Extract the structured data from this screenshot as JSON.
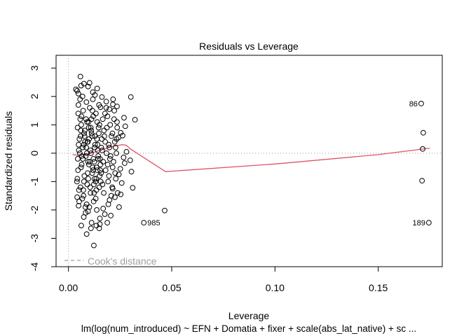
{
  "chart_data": {
    "type": "scatter",
    "title": "Residuals vs Leverage",
    "xlabel": "Leverage",
    "ylabel": "Standardized residuals",
    "subtitle": "lm(log(num_introduced) ~ EFN + Domatia + fixer + scale(abs_lat_native) + sc ...",
    "xlim": [
      -0.006,
      0.181
    ],
    "ylim": [
      -4.0,
      3.45
    ],
    "x_ticks": [
      0.0,
      0.05,
      0.1,
      0.15
    ],
    "x_tick_labels": [
      "0.00",
      "0.05",
      "0.10",
      "0.15"
    ],
    "y_ticks": [
      -4,
      -3,
      -2,
      -1,
      0,
      1,
      2,
      3
    ],
    "y_tick_labels": [
      "-4",
      "-3",
      "-2",
      "-1",
      "0",
      "1",
      "2",
      "3"
    ],
    "legend": {
      "position": "bottom-left",
      "label": "Cook's distance",
      "line_style": "dashed",
      "color": "#9e9e9e"
    },
    "reference_lines": {
      "h": 0,
      "v": 0,
      "style": "dotted",
      "color": "#9e9e9e"
    },
    "smooth_color": "#df536b",
    "smooth_line": {
      "x": [
        0.002,
        0.005,
        0.01,
        0.016,
        0.022,
        0.026,
        0.028,
        0.03,
        0.047,
        0.1,
        0.15,
        0.175
      ],
      "y": [
        -0.05,
        -0.08,
        -0.02,
        0.12,
        0.25,
        0.3,
        0.28,
        0.15,
        -0.65,
        -0.38,
        -0.05,
        0.18
      ]
    },
    "cluster_points": [
      [
        0.0042,
        2.2
      ],
      [
        0.0056,
        1.9
      ],
      [
        0.0071,
        1.5
      ],
      [
        0.0085,
        1.2
      ],
      [
        0.0098,
        0.9
      ],
      [
        0.0114,
        0.6
      ],
      [
        0.0129,
        0.3
      ],
      [
        0.0142,
        0.1
      ],
      [
        0.0045,
        -0.2
      ],
      [
        0.0061,
        -0.5
      ],
      [
        0.0077,
        -0.8
      ],
      [
        0.0091,
        -1.1
      ],
      [
        0.0107,
        -1.4
      ],
      [
        0.0122,
        -1.7
      ],
      [
        0.0137,
        -2.0
      ],
      [
        0.0152,
        -2.3
      ],
      [
        0.0048,
        1.7
      ],
      [
        0.0063,
        1.3
      ],
      [
        0.0079,
        0.8
      ],
      [
        0.0094,
        0.4
      ],
      [
        0.0109,
        0.0
      ],
      [
        0.0125,
        -0.3
      ],
      [
        0.014,
        -0.6
      ],
      [
        0.0156,
        -1.0
      ],
      [
        0.0051,
        -1.3
      ],
      [
        0.0067,
        -1.6
      ],
      [
        0.0082,
        -1.9
      ],
      [
        0.0097,
        1.1
      ],
      [
        0.0112,
        0.7
      ],
      [
        0.0127,
        0.2
      ],
      [
        0.0143,
        -0.2
      ],
      [
        0.0158,
        -0.7
      ],
      [
        0.0053,
        0.5
      ],
      [
        0.0069,
        0.2
      ],
      [
        0.0084,
        -0.1
      ],
      [
        0.0099,
        -0.4
      ],
      [
        0.0115,
        -0.7
      ],
      [
        0.0131,
        -1.0
      ],
      [
        0.0146,
        0.9
      ],
      [
        0.0161,
        0.5
      ],
      [
        0.0044,
        0.9
      ],
      [
        0.0059,
        0.6
      ],
      [
        0.0074,
        0.3
      ],
      [
        0.0089,
        0.0
      ],
      [
        0.0104,
        -0.3
      ],
      [
        0.0119,
        -0.6
      ],
      [
        0.0134,
        -0.9
      ],
      [
        0.0149,
        -1.2
      ],
      [
        0.0047,
        1.4
      ],
      [
        0.0062,
        1.0
      ],
      [
        0.0076,
        0.7
      ],
      [
        0.0092,
        0.4
      ],
      [
        0.0106,
        0.1
      ],
      [
        0.0121,
        -0.2
      ],
      [
        0.0136,
        -0.5
      ],
      [
        0.0151,
        -0.8
      ],
      [
        0.0166,
        1.2
      ],
      [
        0.0172,
        0.8
      ],
      [
        0.0178,
        0.4
      ],
      [
        0.0184,
        0.0
      ],
      [
        0.019,
        -0.4
      ],
      [
        0.0196,
        -0.8
      ],
      [
        0.0202,
        1.0
      ],
      [
        0.0208,
        0.6
      ],
      [
        0.0165,
        -1.1
      ],
      [
        0.0171,
        -1.4
      ],
      [
        0.0177,
        1.4
      ],
      [
        0.0183,
        1.6
      ],
      [
        0.0189,
        1.3
      ],
      [
        0.0195,
        0.3
      ],
      [
        0.0201,
        -0.2
      ],
      [
        0.0207,
        -1.5
      ],
      [
        0.0043,
        -0.9
      ],
      [
        0.0058,
        -1.2
      ],
      [
        0.0073,
        -1.5
      ],
      [
        0.0088,
        -1.8
      ],
      [
        0.0103,
        1.6
      ],
      [
        0.0118,
        1.9
      ],
      [
        0.0133,
        1.4
      ],
      [
        0.0148,
        1.7
      ],
      [
        0.005,
        0.1
      ],
      [
        0.0065,
        -0.1
      ],
      [
        0.008,
        0.4
      ],
      [
        0.0095,
        -0.3
      ],
      [
        0.011,
        0.8
      ],
      [
        0.0126,
        -0.9
      ],
      [
        0.0141,
        0.3
      ],
      [
        0.0155,
        -0.4
      ],
      [
        0.0046,
        -0.6
      ],
      [
        0.006,
        0.8
      ],
      [
        0.0075,
        -1.0
      ],
      [
        0.009,
        1.1
      ],
      [
        0.0105,
        -1.2
      ],
      [
        0.012,
        1.3
      ],
      [
        0.0135,
        -1.3
      ],
      [
        0.015,
        1.0
      ],
      [
        0.0049,
        0.3
      ],
      [
        0.0064,
        -0.4
      ],
      [
        0.0078,
        0.6
      ],
      [
        0.0093,
        -0.7
      ],
      [
        0.0108,
        0.9
      ],
      [
        0.0123,
        -1.1
      ],
      [
        0.0138,
        0.5
      ],
      [
        0.0153,
        -0.2
      ],
      [
        0.0052,
        -1.7
      ],
      [
        0.0068,
        2.0
      ],
      [
        0.0083,
        -2.1
      ],
      [
        0.0087,
        1.8
      ],
      [
        0.0101,
        -1.9
      ],
      [
        0.0116,
        1.5
      ],
      [
        0.0132,
        -1.6
      ],
      [
        0.0147,
        0.7
      ],
      [
        0.0055,
        0.0
      ],
      [
        0.007,
        -0.2
      ],
      [
        0.0086,
        0.2
      ],
      [
        0.01,
        0.5
      ],
      [
        0.0117,
        -0.5
      ],
      [
        0.0128,
        0.6
      ],
      [
        0.0144,
        -0.1
      ],
      [
        0.0159,
        0.2
      ],
      [
        0.0041,
        -1.0
      ],
      [
        0.0057,
        1.2
      ],
      [
        0.0072,
        -1.3
      ],
      [
        0.0096,
        -0.9
      ],
      [
        0.0111,
        1.2
      ],
      [
        0.0124,
        -1.4
      ],
      [
        0.0139,
        1.1
      ],
      [
        0.0154,
        -0.6
      ],
      [
        0.0163,
        0.1
      ],
      [
        0.0168,
        -0.3
      ],
      [
        0.0174,
        0.6
      ],
      [
        0.018,
        -0.6
      ],
      [
        0.0186,
        0.9
      ],
      [
        0.0192,
        -1.0
      ],
      [
        0.0198,
        0.2
      ],
      [
        0.0204,
        -0.1
      ],
      [
        0.0213,
        0.7
      ],
      [
        0.0218,
        -0.3
      ],
      [
        0.0224,
        0.4
      ],
      [
        0.0229,
        -0.9
      ],
      [
        0.0235,
        1.1
      ],
      [
        0.0212,
        -1.2
      ],
      [
        0.0222,
        1.5
      ],
      [
        0.0232,
        0.0
      ],
      [
        0.0216,
        1.9
      ],
      [
        0.0226,
        -0.7
      ],
      [
        0.0236,
        0.9
      ],
      [
        0.0214,
        -0.5
      ],
      [
        0.0228,
        0.2
      ],
      [
        0.0238,
        -1.4
      ],
      [
        0.0221,
        1.2
      ],
      [
        0.0233,
        0.5
      ]
    ],
    "sparse_points": [
      [
        0.0058,
        2.7
      ],
      [
        0.0075,
        2.45
      ],
      [
        0.0095,
        2.35
      ],
      [
        0.0128,
        2.05
      ],
      [
        0.0162,
        1.98
      ],
      [
        0.0155,
        1.62
      ],
      [
        0.0036,
        2.25
      ],
      [
        0.0048,
        2.1
      ],
      [
        0.0061,
        2.38
      ],
      [
        0.0183,
        1.82
      ],
      [
        0.0198,
        1.55
      ],
      [
        0.0215,
        1.72
      ],
      [
        0.0062,
        -2.55
      ],
      [
        0.0088,
        -2.85
      ],
      [
        0.0112,
        -2.45
      ],
      [
        0.0135,
        -2.55
      ],
      [
        0.0152,
        -2.5
      ],
      [
        0.0176,
        -2.15
      ],
      [
        0.0188,
        -2.45
      ],
      [
        0.0109,
        -2.65
      ],
      [
        0.0123,
        -3.25
      ],
      [
        0.0095,
        -2.05
      ],
      [
        0.0074,
        -2.25
      ],
      [
        0.0049,
        -1.85
      ],
      [
        0.0042,
        -1.55
      ],
      [
        0.0199,
        -1.65
      ],
      [
        0.0214,
        -1.25
      ],
      [
        0.0225,
        -1.55
      ],
      [
        0.0242,
        0.55
      ],
      [
        0.0253,
        0.72
      ],
      [
        0.0262,
        0.62
      ],
      [
        0.0275,
        0.95
      ],
      [
        0.0251,
        -0.55
      ],
      [
        0.0272,
        -0.35
      ],
      [
        0.0258,
        -1.05
      ],
      [
        0.0244,
        -0.75
      ],
      [
        0.0302,
        1.98
      ],
      [
        0.0322,
        1.18
      ],
      [
        0.0299,
        -0.25
      ],
      [
        0.0305,
        -0.65
      ],
      [
        0.0311,
        -1.22
      ],
      [
        0.0193,
        -1.8
      ],
      [
        0.0205,
        -2.2
      ],
      [
        0.0168,
        -1.95
      ],
      [
        0.0149,
        -2.65
      ],
      [
        0.0102,
        2.48
      ],
      [
        0.0118,
        2.15
      ],
      [
        0.0139,
        2.28
      ],
      [
        0.0253,
        -1.45
      ],
      [
        0.0269,
        1.25
      ],
      [
        0.0267,
        -0.15
      ],
      [
        0.0281,
        0.05
      ],
      [
        0.0235,
        1.65
      ],
      [
        0.0245,
        -1.9
      ]
    ],
    "outliers": [
      {
        "x": 0.0365,
        "y": -2.45,
        "label": "985"
      },
      {
        "x": 0.0466,
        "y": -2.02,
        "label": ""
      },
      {
        "x": 0.1708,
        "y": 1.75,
        "label": "86"
      },
      {
        "x": 0.1718,
        "y": 0.72,
        "label": ""
      },
      {
        "x": 0.1715,
        "y": 0.15,
        "label": ""
      },
      {
        "x": 0.1712,
        "y": -0.97,
        "label": ""
      },
      {
        "x": 0.1745,
        "y": -2.45,
        "label": "189"
      }
    ]
  }
}
